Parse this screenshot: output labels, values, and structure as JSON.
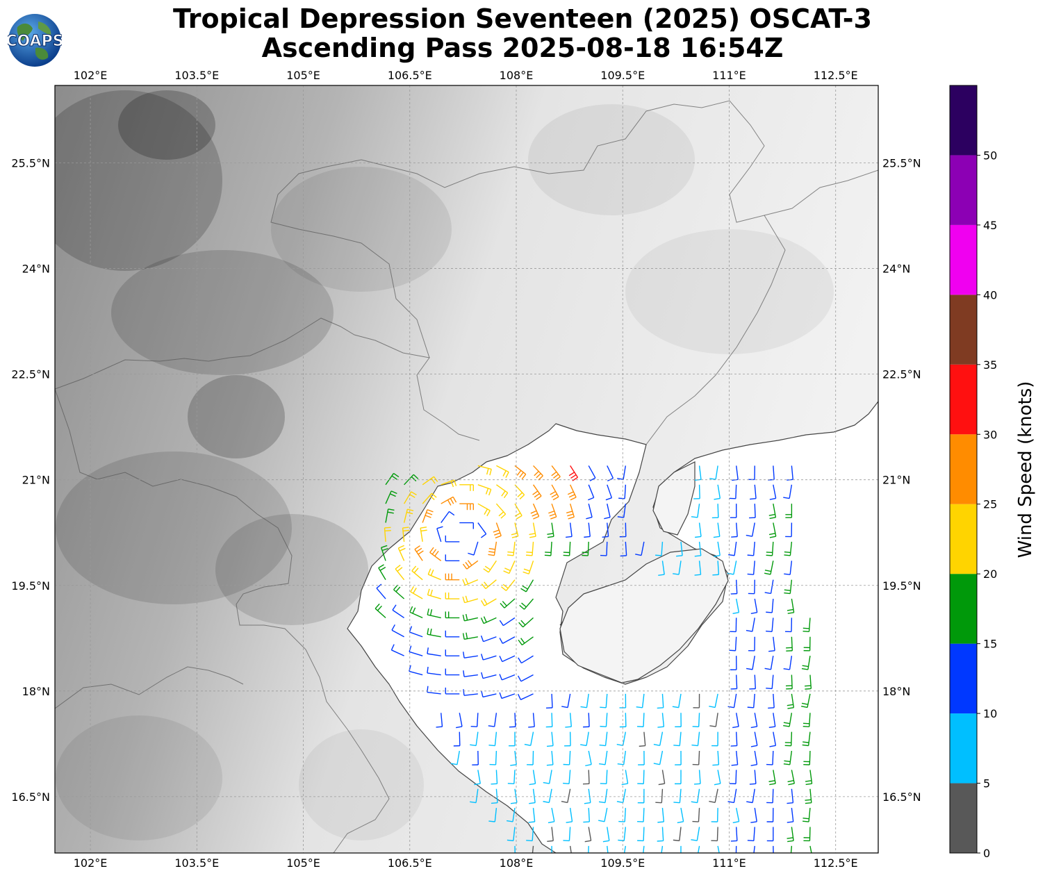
{
  "title": {
    "line1": "Tropical Depression Seventeen (2025) OSCAT-3",
    "line2": "Ascending Pass 2025-08-18 16:54Z"
  },
  "logo": {
    "text": "COAPS",
    "icon": "globe-icon"
  },
  "map": {
    "lon_range": [
      101.5,
      113.1
    ],
    "lat_range": [
      15.7,
      26.6
    ],
    "lon_ticks": [
      "102°E",
      "103.5°E",
      "105°E",
      "106.5°E",
      "108°E",
      "109.5°E",
      "111°E",
      "112.5°E"
    ],
    "lat_ticks": [
      "25.5°N",
      "24°N",
      "22.5°N",
      "21°N",
      "19.5°N",
      "18°N",
      "16.5°N"
    ],
    "lon_tick_values": [
      102,
      103.5,
      105,
      106.5,
      108,
      109.5,
      111,
      112.5
    ],
    "lat_tick_values": [
      25.5,
      24,
      22.5,
      21,
      19.5,
      18,
      16.5
    ]
  },
  "colorbar": {
    "label": "Wind Speed (knots)",
    "ticks": [
      "0",
      "5",
      "10",
      "15",
      "20",
      "25",
      "30",
      "35",
      "40",
      "45",
      "50"
    ],
    "levels": [
      0,
      5,
      10,
      15,
      20,
      25,
      30,
      35,
      40,
      45,
      50,
      55
    ],
    "colors": [
      "#585858",
      "#00bfff",
      "#0038ff",
      "#00990a",
      "#ffd400",
      "#ff8c00",
      "#ff1010",
      "#7f3b22",
      "#f000f0",
      "#8c00b4",
      "#2c0060"
    ]
  }
}
